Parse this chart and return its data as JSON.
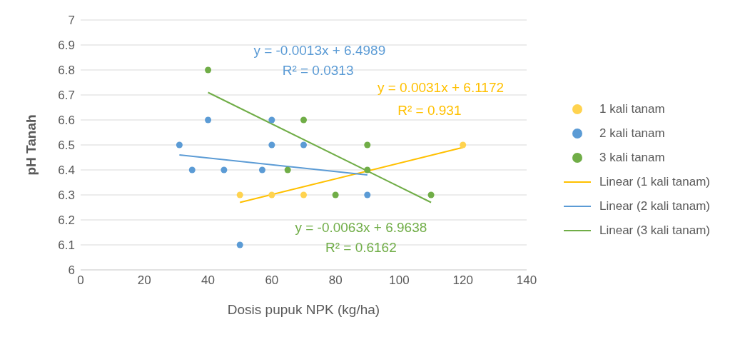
{
  "chart_data": {
    "type": "scatter",
    "xlabel": "Dosis pupuk NPK (kg/ha)",
    "ylabel": "pH Tanah",
    "xlim": [
      0,
      140
    ],
    "xticks": [
      0,
      20,
      40,
      60,
      80,
      100,
      120,
      140
    ],
    "ylim": [
      6,
      7
    ],
    "yticks": [
      6,
      6.1,
      6.2,
      6.3,
      6.4,
      6.5,
      6.6,
      6.7,
      6.8,
      6.9,
      7
    ],
    "grid": "y",
    "legend": "right",
    "series": [
      {
        "name": "1 kali tanam",
        "marker": "circle",
        "color": "#ffd34f",
        "x": [
          50,
          60,
          70,
          120
        ],
        "values": [
          6.3,
          6.3,
          6.3,
          6.5
        ]
      },
      {
        "name": "2 kali tanam",
        "marker": "circle",
        "color": "#5b9bd5",
        "x": [
          31,
          35,
          40,
          45,
          50,
          57,
          60,
          60,
          70,
          90
        ],
        "values": [
          6.5,
          6.4,
          6.6,
          6.4,
          6.1,
          6.4,
          6.6,
          6.5,
          6.5,
          6.3
        ]
      },
      {
        "name": "3 kali tanam",
        "marker": "circle",
        "color": "#70ad47",
        "x": [
          40,
          65,
          70,
          80,
          90,
          90,
          110
        ],
        "values": [
          6.8,
          6.4,
          6.6,
          6.3,
          6.5,
          6.4,
          6.3
        ]
      },
      {
        "name": "Linear (1 kali tanam)",
        "type": "line",
        "marker": "none",
        "color": "#ffc000",
        "x": [
          50,
          120
        ],
        "values": [
          6.27,
          6.49
        ]
      },
      {
        "name": "Linear (2 kali tanam)",
        "type": "line",
        "marker": "none",
        "color": "#5b9bd5",
        "x": [
          31,
          90
        ],
        "values": [
          6.46,
          6.38
        ]
      },
      {
        "name": "Linear (3 kali tanam)",
        "type": "line",
        "marker": "none",
        "color": "#70ad47",
        "x": [
          40,
          110
        ],
        "values": [
          6.71,
          6.27
        ]
      }
    ],
    "annotations": [
      "y = -0.0013x + 6.4989",
      "R² = 0.0313",
      "y = 0.0031x + 6.1172",
      "R² = 0.931",
      "y = -0.0063x + 6.9638",
      "R² = 0.6162"
    ]
  }
}
